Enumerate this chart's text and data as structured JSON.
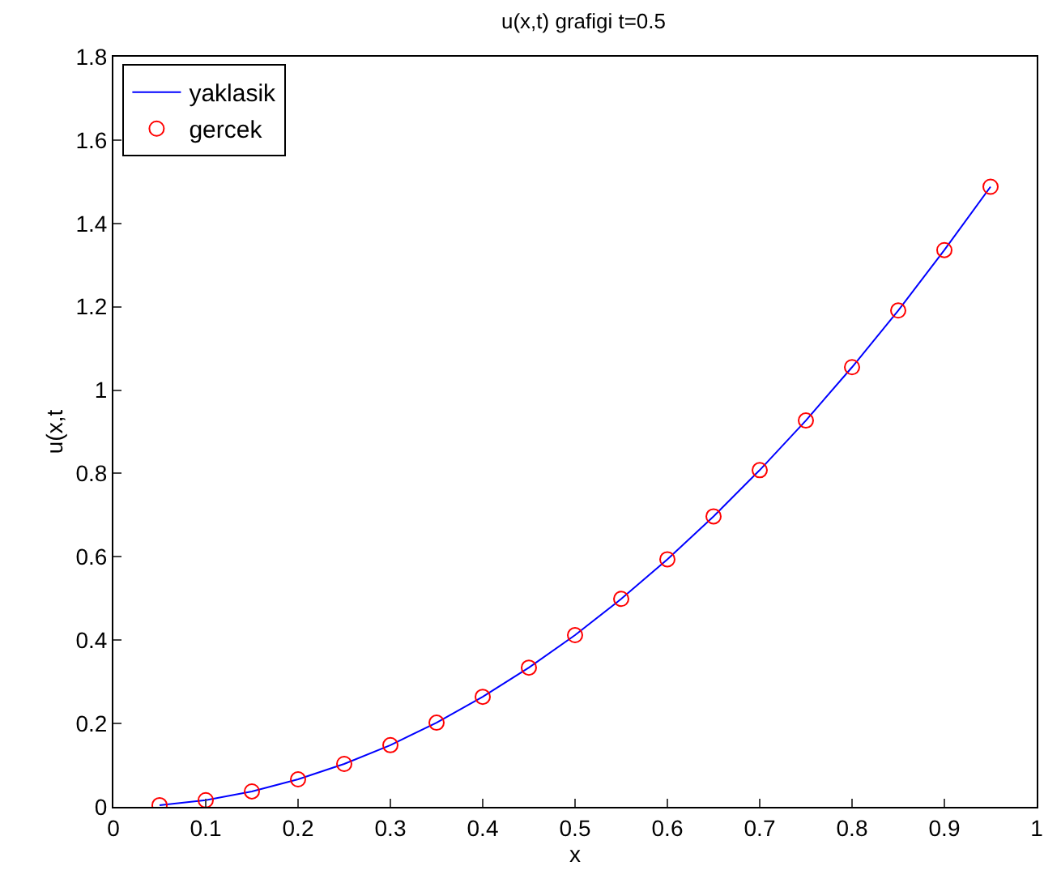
{
  "chart_data": {
    "type": "line",
    "title": "u(x,t) grafigi t=0.5",
    "xlabel": "x",
    "ylabel": "u(x,t",
    "x": [
      0.05,
      0.1,
      0.15,
      0.2,
      0.25,
      0.3,
      0.35,
      0.4,
      0.45,
      0.5,
      0.55,
      0.6,
      0.65,
      0.7,
      0.75,
      0.8,
      0.85,
      0.9,
      0.95
    ],
    "series": [
      {
        "name": "yaklasik",
        "color": "#0000ff",
        "marker": "none",
        "line_style": "solid",
        "values": [
          0.004,
          0.016,
          0.037,
          0.066,
          0.103,
          0.148,
          0.202,
          0.264,
          0.334,
          0.412,
          0.499,
          0.594,
          0.697,
          0.808,
          0.927,
          1.055,
          1.191,
          1.336,
          1.488
        ]
      },
      {
        "name": "gercek",
        "type": "scatter",
        "color": "#ff0000",
        "marker": "circle",
        "values": [
          0.004,
          0.016,
          0.037,
          0.066,
          0.103,
          0.148,
          0.202,
          0.264,
          0.334,
          0.412,
          0.499,
          0.594,
          0.697,
          0.808,
          0.927,
          1.055,
          1.191,
          1.336,
          1.488
        ]
      }
    ],
    "xlim": [
      0,
      1
    ],
    "xticks": [
      0,
      0.1,
      0.2,
      0.3,
      0.4,
      0.5,
      0.6,
      0.7,
      0.8,
      0.9,
      1
    ],
    "ylim": [
      0,
      1.8
    ],
    "yticks": [
      0,
      0.2,
      0.4,
      0.6,
      0.8,
      1,
      1.2,
      1.4,
      1.6,
      1.8
    ],
    "legend": "top left"
  }
}
